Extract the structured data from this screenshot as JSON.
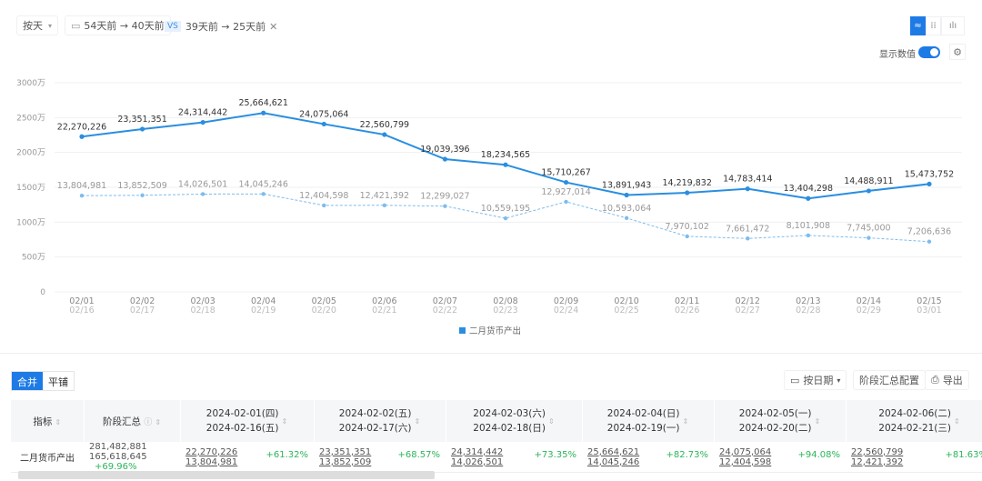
{
  "toolbar": {
    "granularity": "按天",
    "range_a": "54天前 → 40天前",
    "vs": "VS",
    "range_b": "39天前 → 25天前",
    "show_values_label": "显示数值",
    "show_values_on": true,
    "chart_type_selected": "line"
  },
  "chart_data": {
    "type": "line",
    "y_ticks": [
      "0",
      "500万",
      "1000万",
      "1500万",
      "2000万",
      "2500万",
      "3000万"
    ],
    "ylim": [
      0,
      30000000
    ],
    "grid": true,
    "legend_position": "bottom",
    "x_primary": [
      "02/01",
      "02/02",
      "02/03",
      "02/04",
      "02/05",
      "02/06",
      "02/07",
      "02/08",
      "02/09",
      "02/10",
      "02/11",
      "02/12",
      "02/13",
      "02/14",
      "02/15"
    ],
    "x_secondary": [
      "02/16",
      "02/17",
      "02/18",
      "02/19",
      "02/20",
      "02/21",
      "02/22",
      "02/23",
      "02/24",
      "02/25",
      "02/26",
      "02/27",
      "02/28",
      "02/29",
      "03/01"
    ],
    "series": [
      {
        "name": "二月货币产出",
        "style": "solid",
        "color": "#2a8ee0",
        "values": [
          22270226,
          23351351,
          24314442,
          25664621,
          24075064,
          22560799,
          19039396,
          18234565,
          15710267,
          13891943,
          14219832,
          14783414,
          13404298,
          14488911,
          15473752
        ]
      },
      {
        "style": "dashed",
        "color": "#7dbcee",
        "values": [
          13804981,
          13852509,
          14026501,
          14045246,
          12404598,
          12421392,
          12299027,
          10559195,
          12927014,
          10593064,
          7970102,
          7661472,
          8101908,
          7745000,
          7206636
        ]
      }
    ]
  },
  "table_toolbar": {
    "merge": "合并",
    "tile": "平铺",
    "by_date": "按日期",
    "summary_config": "阶段汇总配置",
    "export": "导出"
  },
  "table": {
    "headers": [
      "指标",
      "阶段汇总"
    ],
    "date_headers": [
      [
        "2024-02-01(四)",
        "2024-02-16(五)"
      ],
      [
        "2024-02-02(五)",
        "2024-02-17(六)"
      ],
      [
        "2024-02-03(六)",
        "2024-02-18(日)"
      ],
      [
        "2024-02-04(日)",
        "2024-02-19(一)"
      ],
      [
        "2024-02-05(一)",
        "2024-02-20(二)"
      ],
      [
        "2024-02-06(二)",
        "2024-02-21(三)"
      ]
    ],
    "row": {
      "metric": "二月货币产出",
      "summary_a": "281,482,881",
      "summary_b": "165,618,645",
      "summary_pct": "+69.96%",
      "cells": [
        [
          "22,270,226",
          "13,804,981",
          "+61.32%"
        ],
        [
          "23,351,351",
          "13,852,509",
          "+68.57%"
        ],
        [
          "24,314,442",
          "14,026,501",
          "+73.35%"
        ],
        [
          "25,664,621",
          "14,045,246",
          "+82.73%"
        ],
        [
          "24,075,064",
          "12,404,598",
          "+94.08%"
        ],
        [
          "22,560,799",
          "12,421,392",
          "+81.63%"
        ]
      ]
    }
  }
}
